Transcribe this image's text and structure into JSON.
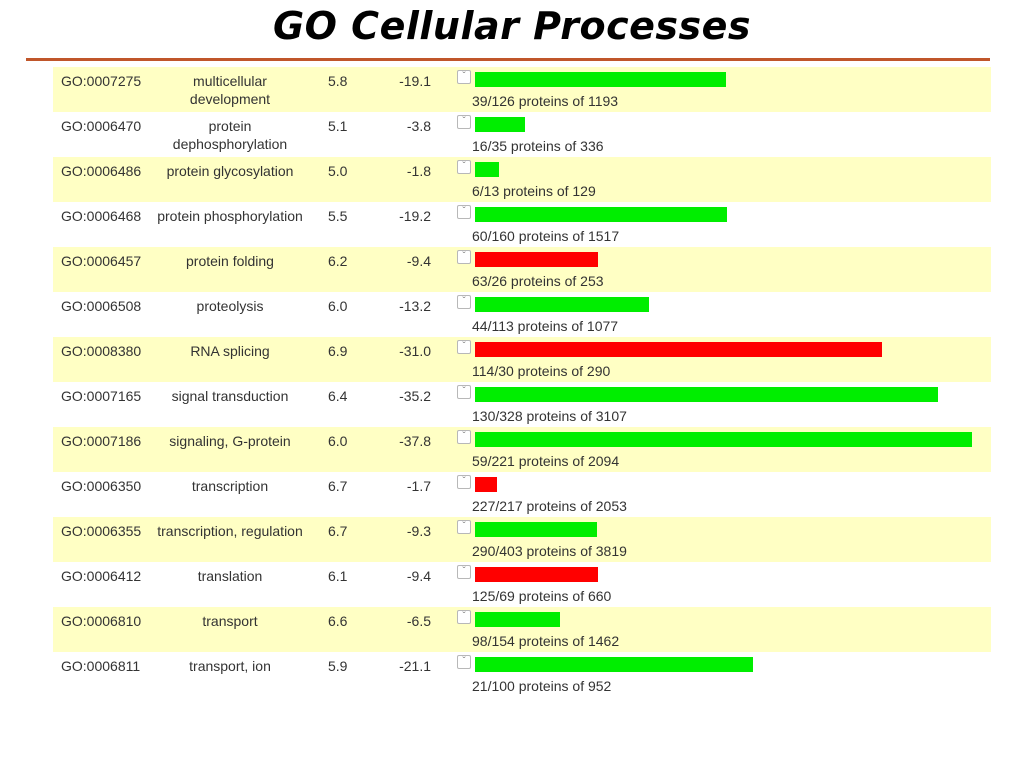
{
  "title": "GO Cellular Processes",
  "colors": {
    "up": "#ff0000",
    "down": "#00ee00",
    "row_band": "#ffffc4",
    "rule": "#c0562a"
  },
  "chart_data": {
    "type": "bar",
    "orientation": "horizontal",
    "title": "GO Cellular Processes",
    "value_axis": {
      "min": 0,
      "max": 70
    },
    "rows": [
      {
        "id": "GO:0007275",
        "name": "multicellular development",
        "v1": "5.8",
        "v2": "-19.1",
        "bar": 35.0,
        "direction": "down",
        "count": "39/126 proteins of 1193"
      },
      {
        "id": "GO:0006470",
        "name": "protein dephosphorylation",
        "v1": "5.1",
        "v2": "-3.8",
        "bar": 7.0,
        "direction": "down",
        "count": "16/35 proteins of 336"
      },
      {
        "id": "GO:0006486",
        "name": "protein glycosylation",
        "v1": "5.0",
        "v2": "-1.8",
        "bar": 3.3,
        "direction": "down",
        "count": "6/13 proteins of 129"
      },
      {
        "id": "GO:0006468",
        "name": "protein phosphorylation",
        "v1": "5.5",
        "v2": "-19.2",
        "bar": 35.2,
        "direction": "down",
        "count": "60/160 proteins of 1517"
      },
      {
        "id": "GO:0006457",
        "name": "protein folding",
        "v1": "6.2",
        "v2": "-9.4",
        "bar": 17.2,
        "direction": "up",
        "count": "63/26 proteins of 253"
      },
      {
        "id": "GO:0006508",
        "name": "proteolysis",
        "v1": "6.0",
        "v2": "-13.2",
        "bar": 24.2,
        "direction": "down",
        "count": "44/113 proteins of 1077"
      },
      {
        "id": "GO:0008380",
        "name": "RNA splicing",
        "v1": "6.9",
        "v2": "-31.0",
        "bar": 56.8,
        "direction": "up",
        "count": "114/30 proteins of 290"
      },
      {
        "id": "GO:0007165",
        "name": "signal transduction",
        "v1": "6.4",
        "v2": "-35.2",
        "bar": 64.5,
        "direction": "down",
        "count": "130/328 proteins of 3107"
      },
      {
        "id": "GO:0007186",
        "name": "signaling, G-protein",
        "v1": "6.0",
        "v2": "-37.8",
        "bar": 69.3,
        "direction": "down",
        "count": "59/221 proteins of 2094"
      },
      {
        "id": "GO:0006350",
        "name": "transcription",
        "v1": "6.7",
        "v2": "-1.7",
        "bar": 3.1,
        "direction": "up",
        "count": "227/217 proteins of 2053"
      },
      {
        "id": "GO:0006355",
        "name": "transcription, regulation",
        "v1": "6.7",
        "v2": "-9.3",
        "bar": 17.0,
        "direction": "down",
        "count": "290/403 proteins of 3819"
      },
      {
        "id": "GO:0006412",
        "name": "translation",
        "v1": "6.1",
        "v2": "-9.4",
        "bar": 17.2,
        "direction": "up",
        "count": "125/69 proteins of 660"
      },
      {
        "id": "GO:0006810",
        "name": "transport",
        "v1": "6.6",
        "v2": "-6.5",
        "bar": 11.9,
        "direction": "down",
        "count": "98/154 proteins of 1462"
      },
      {
        "id": "GO:0006811",
        "name": "transport, ion",
        "v1": "5.9",
        "v2": "-21.1",
        "bar": 38.7,
        "direction": "down",
        "count": "21/100 proteins of 952"
      }
    ]
  }
}
